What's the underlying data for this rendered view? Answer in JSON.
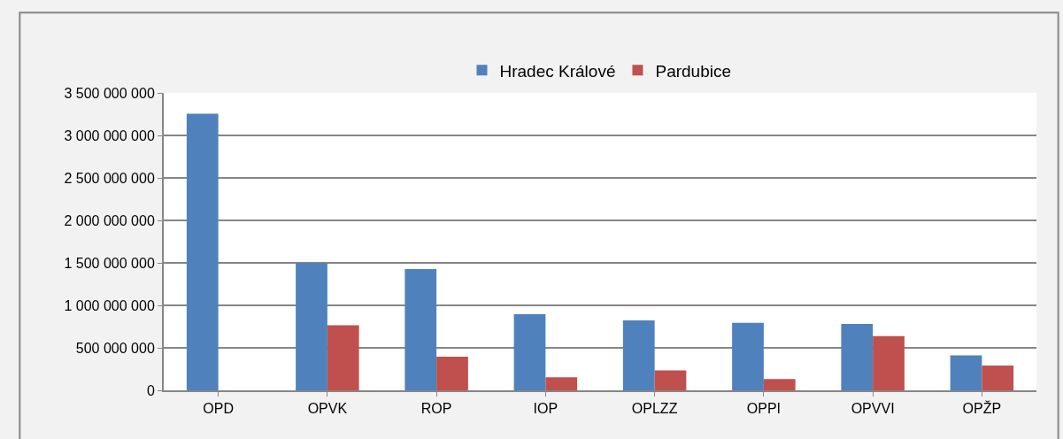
{
  "chart_data": {
    "type": "bar",
    "categories": [
      "OPD",
      "OPVK",
      "ROP",
      "IOP",
      "OPLZZ",
      "OPPI",
      "OPVVI",
      "OPŽP"
    ],
    "series": [
      {
        "name": "Hradec Králové",
        "color": "#4f81bd",
        "values": [
          3254000000,
          1500000000,
          1427000000,
          897000000,
          823000000,
          794000000,
          780000000,
          412000000
        ]
      },
      {
        "name": "Pardubice",
        "color": "#c0504d",
        "values": [
          0,
          765000000,
          397000000,
          153000000,
          235000000,
          134000000,
          639000000,
          292000000
        ]
      }
    ],
    "ylim": [
      0,
      3500000000
    ],
    "yticks": [
      0,
      {
        "value": 500000000,
        "label": "500 000 000"
      },
      {
        "value": 1000000000,
        "label": "1 000 000 000"
      },
      {
        "value": 1500000000,
        "label": "1 500 000 000"
      },
      {
        "value": 2000000000,
        "label": "2 000 000 000"
      },
      {
        "value": 2500000000,
        "label": "2 500 000 000"
      },
      {
        "value": 3000000000,
        "label": "3 000 000 000"
      },
      {
        "value": 3500000000,
        "label": "3 500 000 000"
      }
    ],
    "grid": "y",
    "legend": "top"
  }
}
